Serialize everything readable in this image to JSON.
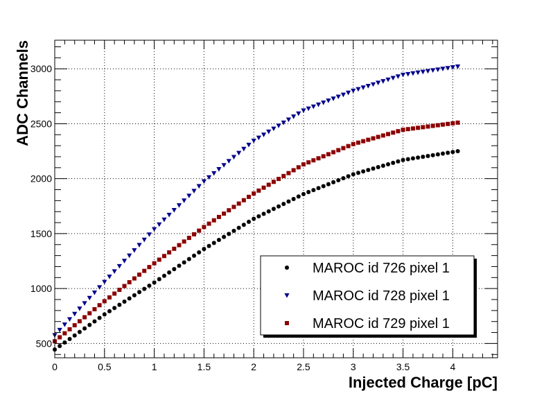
{
  "chart_data": {
    "type": "scatter",
    "xlabel": "Injected Charge [pC]",
    "ylabel": "ADC Channels",
    "xlim": [
      0,
      4.45
    ],
    "ylim": [
      370,
      3260
    ],
    "grid": true,
    "x_ticks": [
      "0",
      "0.5",
      "1",
      "1.5",
      "2",
      "2.5",
      "3",
      "3.5",
      "4"
    ],
    "y_ticks": [
      "500",
      "1000",
      "1500",
      "2000",
      "2500",
      "3000"
    ],
    "legend_position": "bottom-right",
    "x_range": [
      0.0,
      4.05
    ],
    "x_step": 0.05,
    "series": [
      {
        "name": "MAROC id 726 pixel 1",
        "marker": "star",
        "color": "#000000",
        "values": [
          [
            0.0,
            445
          ],
          [
            0.5,
            765
          ],
          [
            1.0,
            1055
          ],
          [
            1.5,
            1360
          ],
          [
            2.0,
            1635
          ],
          [
            2.5,
            1860
          ],
          [
            3.0,
            2040
          ],
          [
            3.5,
            2170
          ],
          [
            4.05,
            2250
          ]
        ]
      },
      {
        "name": "MAROC id 728 pixel 1",
        "marker": "triangle-down",
        "color": "#00008b",
        "values": [
          [
            0.0,
            575
          ],
          [
            0.5,
            1060
          ],
          [
            1.0,
            1540
          ],
          [
            1.5,
            1975
          ],
          [
            2.0,
            2345
          ],
          [
            2.5,
            2620
          ],
          [
            3.0,
            2800
          ],
          [
            3.5,
            2945
          ],
          [
            4.05,
            3020
          ]
        ]
      },
      {
        "name": "MAROC id 729 pixel 1",
        "marker": "square",
        "color": "#8b0000",
        "values": [
          [
            0.0,
            520
          ],
          [
            0.5,
            885
          ],
          [
            1.0,
            1230
          ],
          [
            1.5,
            1560
          ],
          [
            2.0,
            1865
          ],
          [
            2.5,
            2130
          ],
          [
            3.0,
            2315
          ],
          [
            3.5,
            2445
          ],
          [
            4.05,
            2510
          ]
        ]
      }
    ]
  }
}
